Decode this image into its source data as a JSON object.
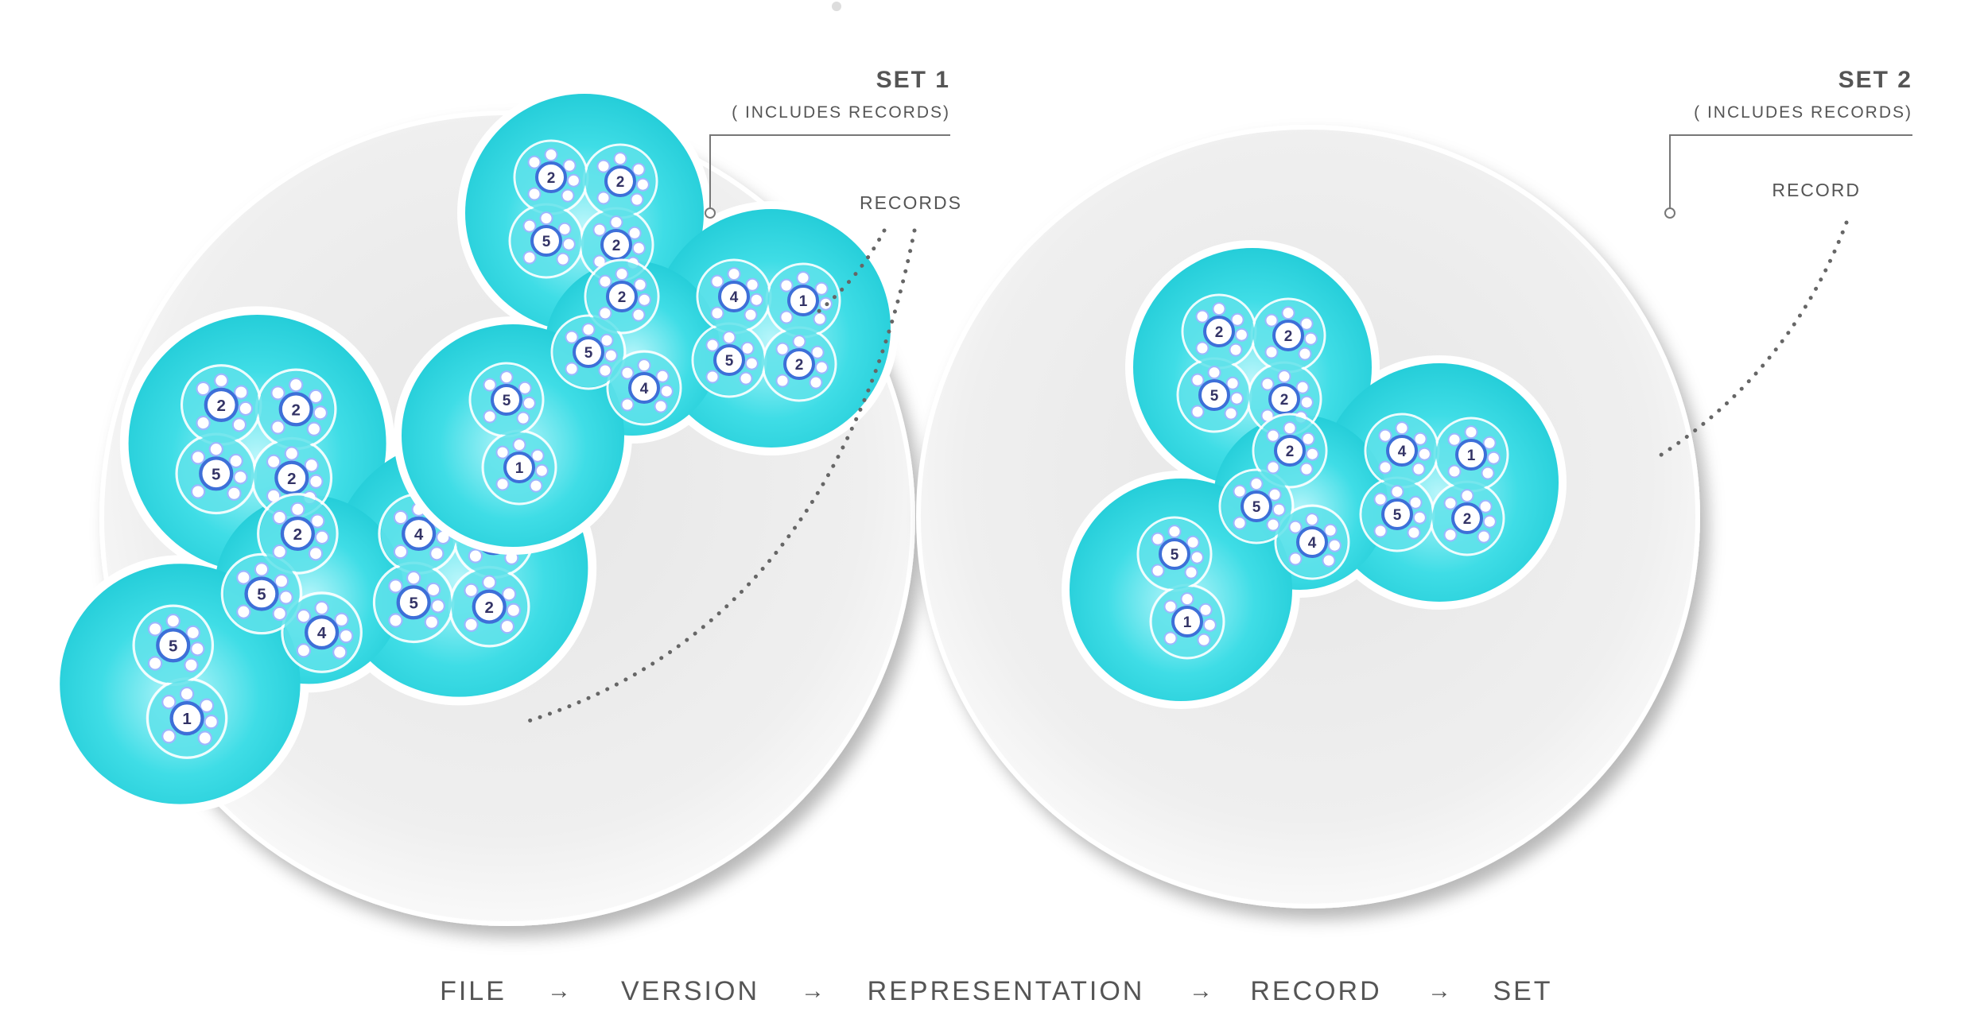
{
  "colors": {
    "background": "#ffffff",
    "set_disc": "#eeeeee",
    "set_disc_edge": "#f8f8f8",
    "record_fill": "#2ed5e0",
    "record_glow": "#8ff0f6",
    "record_stroke": "#ffffff",
    "rep_fill": "#5fe2ea",
    "version_ring": "#3d6fd8",
    "file_dot": "#9fb6ff",
    "label_text": "#555555",
    "callout_line": "#777777"
  },
  "icons": {
    "file": "small-circle",
    "version": "numbered-circle",
    "representation": "rounded-blob",
    "record": "cyan-blob",
    "set": "large-grey-disc",
    "connector": "dotted-line"
  },
  "sets": [
    {
      "title": "SET 1",
      "subtitle": "( INCLUDES RECORDS)",
      "callout_label": "RECORDS",
      "record_count": 2
    },
    {
      "title": "SET 2",
      "subtitle": "( INCLUDES RECORDS)",
      "callout_label": "RECORD",
      "record_count": 1
    }
  ],
  "record_template": {
    "lobes": [
      {
        "versions": [
          "2",
          "2",
          "5",
          "2"
        ]
      },
      {
        "versions": [
          "4",
          "1",
          "5",
          "2"
        ]
      },
      {
        "versions": [
          "2",
          "5",
          "4"
        ]
      },
      {
        "versions": [
          "5",
          "1"
        ]
      }
    ]
  },
  "legend": {
    "items": [
      "FILE",
      "VERSION",
      "REPRESENTATION",
      "RECORD",
      "SET"
    ],
    "arrow": "→"
  }
}
